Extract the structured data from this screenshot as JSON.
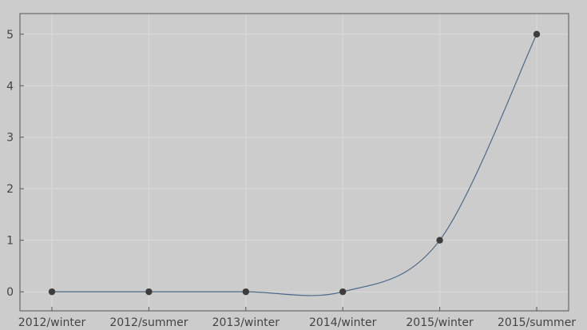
{
  "chart_data": {
    "type": "line",
    "title": "",
    "xlabel": "",
    "ylabel": "",
    "categories": [
      "2012/winter",
      "2012/summer",
      "2013/winter",
      "2014/winter",
      "2015/winter",
      "2015/summer"
    ],
    "series": [
      {
        "values": [
          0,
          0,
          0,
          0,
          1,
          5
        ]
      }
    ],
    "yticks": [
      0,
      1,
      2,
      3,
      4,
      5
    ],
    "ylim": [
      -0.37,
      5.4
    ],
    "grid": true,
    "smooth": true,
    "colors": {
      "background": "#cccccc",
      "grid": "#dadada",
      "axis": "#555555",
      "line": "#4a6a8a",
      "marker": "#3d3d3d",
      "text": "#444444"
    }
  }
}
